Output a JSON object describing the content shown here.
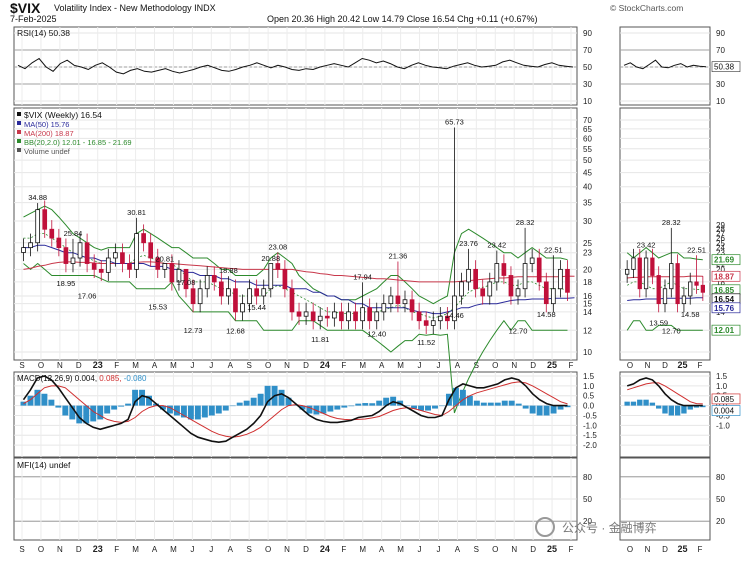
{
  "header": {
    "symbol": "$VIX",
    "description": "Volatility Index - New Methodology INDX",
    "date": "7-Feb-2025",
    "quote": "Open 20.36  High 20.42  Low 14.79  Close 16.54  Chg +0.11 (+0.67%)",
    "credit": "© StockCharts.com"
  },
  "watermark": {
    "text": "公众号 · 金融博弈"
  },
  "colors": {
    "ma50": "#2a2a9a",
    "ma200": "#c8374a",
    "bb": "#2c8a2c",
    "up": "#111111",
    "down": "#c0103a",
    "macd": "#111111",
    "signal": "#d03030",
    "hist": "#2f8fc8"
  },
  "chart_data": [
    {
      "type": "line",
      "panel": "rsi",
      "legend": "RSI(14) 50.38",
      "last_label": "50.38",
      "ylim": [
        10,
        90
      ],
      "yticks": [
        10,
        30,
        50,
        70,
        90
      ],
      "y": [
        52,
        48,
        55,
        60,
        50,
        45,
        54,
        58,
        52,
        50,
        47,
        52,
        55,
        50,
        44,
        42,
        46,
        48,
        45,
        44,
        46,
        48,
        45,
        43,
        45,
        47,
        50,
        52,
        49,
        46,
        45,
        47,
        50,
        52,
        55,
        52,
        49,
        52,
        50,
        47,
        46,
        48,
        47,
        50,
        52,
        54,
        52,
        50,
        55,
        60,
        58,
        55,
        57,
        54,
        50,
        48,
        52,
        55,
        52,
        50,
        49,
        48,
        51,
        53,
        55,
        52,
        50,
        51,
        52,
        56,
        58,
        55,
        52,
        51,
        50,
        53,
        55,
        52,
        51,
        50
      ],
      "zoom_y": [
        52,
        55,
        50,
        48,
        53,
        58,
        50,
        49,
        52,
        54,
        50,
        52,
        51,
        50.4
      ]
    },
    {
      "type": "candlestick",
      "panel": "price",
      "legend": [
        "$VIX (Weekly) 16.54",
        "MA(50) 15.76",
        "MA(200) 18.87",
        "BB(20,2.0) 12.01 - 16.85 - 21.69",
        "Volume undef"
      ],
      "scale": "log",
      "ylim": [
        10,
        70
      ],
      "yticks": [
        10,
        12,
        14,
        15,
        16,
        18,
        20,
        23,
        25,
        30,
        35,
        40,
        45,
        50,
        55,
        60,
        65,
        70
      ],
      "zoom_yticks": [
        12,
        14,
        15,
        16,
        18,
        20,
        21,
        22,
        23,
        24,
        25,
        26,
        27,
        28,
        29
      ],
      "annotations": [
        {
          "i": 2,
          "v": 34.88,
          "text": "34.88",
          "pos": "above"
        },
        {
          "i": 7,
          "v": 25.84,
          "text": "25.84",
          "pos": "above"
        },
        {
          "i": 6,
          "v": 18.95,
          "text": "18.95",
          "pos": "below"
        },
        {
          "i": 9,
          "v": 17.06,
          "text": "17.06",
          "pos": "below"
        },
        {
          "i": 16,
          "v": 30.81,
          "text": "30.81",
          "pos": "above"
        },
        {
          "i": 20,
          "v": 20.81,
          "text": "20.81",
          "pos": "above"
        },
        {
          "i": 19,
          "v": 15.53,
          "text": "15.53",
          "pos": "below"
        },
        {
          "i": 23,
          "v": 17.08,
          "text": "17.08",
          "pos": "above"
        },
        {
          "i": 24,
          "v": 12.73,
          "text": "12.73",
          "pos": "below"
        },
        {
          "i": 29,
          "v": 18.88,
          "text": "18.88",
          "pos": "above"
        },
        {
          "i": 30,
          "v": 12.68,
          "text": "12.68",
          "pos": "below"
        },
        {
          "i": 35,
          "v": 20.88,
          "text": "20.88",
          "pos": "above"
        },
        {
          "i": 36,
          "v": 23.08,
          "text": "23.08",
          "pos": "above"
        },
        {
          "i": 33,
          "v": 15.44,
          "text": "15.44",
          "pos": "below"
        },
        {
          "i": 42,
          "v": 11.81,
          "text": "11.81",
          "pos": "below"
        },
        {
          "i": 48,
          "v": 17.94,
          "text": "17.94",
          "pos": "above"
        },
        {
          "i": 50,
          "v": 12.4,
          "text": "12.40",
          "pos": "below"
        },
        {
          "i": 53,
          "v": 21.36,
          "text": "21.36",
          "pos": "above"
        },
        {
          "i": 57,
          "v": 11.52,
          "text": "11.52",
          "pos": "below"
        },
        {
          "i": 61,
          "v": 65.73,
          "text": "65.73",
          "pos": "above"
        },
        {
          "i": 63,
          "v": 23.76,
          "text": "23.76",
          "pos": "above"
        },
        {
          "i": 61,
          "v": 14.46,
          "text": "14.46",
          "pos": "below"
        },
        {
          "i": 67,
          "v": 23.42,
          "text": "23.42",
          "pos": "above"
        },
        {
          "i": 71,
          "v": 28.32,
          "text": "28.32",
          "pos": "above"
        },
        {
          "i": 70,
          "v": 12.7,
          "text": "12.70",
          "pos": "below"
        },
        {
          "i": 75,
          "v": 22.51,
          "text": "22.51",
          "pos": "above"
        },
        {
          "i": 74,
          "v": 14.58,
          "text": "14.58",
          "pos": "below"
        }
      ],
      "zoom_annotations": [
        {
          "i": 3,
          "v": 23.42,
          "text": "23.42",
          "pos": "above"
        },
        {
          "i": 7,
          "v": 28.32,
          "text": "28.32",
          "pos": "above"
        },
        {
          "i": 5,
          "v": 13.59,
          "text": "13.59",
          "pos": "below"
        },
        {
          "i": 7,
          "v": 12.7,
          "text": "12.70",
          "pos": "below"
        },
        {
          "i": 11,
          "v": 22.51,
          "text": "22.51",
          "pos": "above"
        },
        {
          "i": 10,
          "v": 14.58,
          "text": "14.58",
          "pos": "below"
        }
      ],
      "right_labels": [
        {
          "v": 21.69,
          "text": "21.69",
          "color": "#2c8a2c"
        },
        {
          "v": 18.87,
          "text": "18.87",
          "color": "#c8374a"
        },
        {
          "v": 16.85,
          "text": "16.85",
          "color": "#2c8a2c"
        },
        {
          "v": 16.54,
          "text": "16.54",
          "color": "#111111"
        },
        {
          "v": 15.76,
          "text": "15.76",
          "color": "#2a2a9a"
        },
        {
          "v": 12.01,
          "text": "12.01",
          "color": "#2c8a2c"
        }
      ],
      "close": [
        24,
        25,
        33,
        28,
        26,
        24,
        21,
        22,
        25,
        21,
        20,
        19.5,
        22,
        23,
        21,
        20,
        27,
        25,
        22,
        20,
        21,
        18,
        20,
        17,
        15,
        17,
        19,
        18,
        16,
        17,
        14,
        15,
        17,
        16,
        17,
        21,
        20,
        17,
        14,
        13.5,
        14,
        13,
        13.5,
        13.3,
        14,
        13,
        14,
        13,
        14.5,
        13,
        14,
        15,
        16,
        15,
        15.5,
        14,
        13,
        12.5,
        13,
        13.5,
        13,
        16,
        18,
        20,
        17,
        16,
        18,
        21,
        19,
        16,
        17,
        21,
        22,
        18,
        15,
        17,
        20,
        16.5
      ],
      "zoom_close": [
        20,
        22,
        17,
        22,
        19,
        15,
        17,
        21,
        15,
        16,
        18,
        17.5,
        16.5
      ],
      "ma50": [
        24,
        24,
        24.5,
        24.5,
        24,
        23.5,
        23,
        23,
        22.5,
        22,
        22,
        21.5,
        21.5,
        21,
        21,
        21,
        21,
        21,
        20.5,
        20.5,
        20.5,
        20,
        20,
        19.5,
        19.5,
        19,
        19,
        19,
        18.5,
        18.5,
        18,
        18,
        18,
        17.5,
        17.5,
        17.5,
        17.5,
        17.5,
        17,
        17,
        17,
        16.5,
        16.5,
        16,
        16,
        15.5,
        15.5,
        15,
        15,
        14.5,
        14.5,
        14.5,
        14.5,
        14.5,
        14.5,
        14.2,
        14,
        14,
        13.8,
        13.8,
        14,
        14.2,
        14.5,
        14.5,
        14.8,
        15,
        15,
        15,
        15.2,
        15.4,
        15.5,
        15.5,
        15.6,
        15.6,
        15.6,
        15.7,
        15.7,
        15.7,
        15.76
      ],
      "ma200": [
        20,
        20.2,
        20.5,
        20.7,
        21,
        21.2,
        21.3,
        21.3,
        21.2,
        21.2,
        21.1,
        21,
        21,
        21,
        21,
        21,
        21.2,
        21.3,
        21.3,
        21.2,
        21,
        21,
        20.9,
        20.8,
        20.7,
        20.6,
        20.5,
        20.4,
        20.3,
        20.2,
        20.1,
        20,
        20,
        20,
        20,
        20,
        20,
        20,
        20,
        19.8,
        19.6,
        19.5,
        19.3,
        19.2,
        19,
        19,
        18.9,
        18.8,
        18.7,
        18.6,
        18.5,
        18.5,
        18.4,
        18.3,
        18.2,
        18.1,
        18,
        18,
        18,
        18,
        18,
        18,
        18.1,
        18.2,
        18.3,
        18.4,
        18.5,
        18.6,
        18.6,
        18.7,
        18.8,
        18.8,
        18.8,
        18.8,
        18.8,
        18.8,
        18.8,
        18.9,
        18.87
      ],
      "bb_mid": [
        26,
        26,
        27,
        27,
        26,
        25,
        24,
        23,
        22.5,
        22,
        21.5,
        21,
        21,
        21,
        21,
        21,
        22,
        22.5,
        22,
        21.5,
        21,
        21,
        20,
        19,
        18,
        18,
        18,
        17.5,
        17,
        17,
        16,
        16,
        16,
        16,
        16,
        17,
        17.5,
        17,
        16.5,
        16,
        15.5,
        15,
        14.5,
        14,
        14,
        13.8,
        13.8,
        13.8,
        14,
        14,
        14,
        14.2,
        14.5,
        14.8,
        14.5,
        14,
        13.8,
        13.5,
        13.3,
        13.5,
        13.8,
        14.5,
        15.5,
        16.5,
        17,
        17.2,
        17.5,
        18,
        18,
        17.5,
        17.5,
        18,
        18,
        17.5,
        17,
        17,
        17,
        16.85
      ],
      "bb_up": [
        31,
        32,
        33,
        34,
        33,
        31,
        29,
        27,
        26,
        25,
        24,
        23.5,
        24,
        24,
        24,
        24,
        27,
        28,
        27,
        26,
        25,
        24,
        24,
        23,
        22,
        22,
        22,
        21,
        20,
        20,
        19,
        19,
        19,
        19,
        20,
        22,
        23,
        22,
        21,
        19,
        18,
        17,
        16.5,
        16,
        16,
        15.5,
        15.5,
        15.5,
        16,
        16.5,
        17,
        18,
        19,
        19,
        18,
        17,
        16,
        15.5,
        15,
        15.5,
        16,
        23,
        27,
        28,
        27,
        26,
        25,
        24,
        23,
        23,
        22,
        23,
        24,
        23,
        22,
        22,
        22,
        21.69
      ],
      "bb_low": [
        21,
        20,
        21,
        20,
        19,
        19,
        19,
        19,
        19,
        19,
        19,
        18.5,
        18,
        18,
        18,
        18,
        17,
        17,
        17,
        17,
        17,
        18,
        16,
        15,
        14,
        14,
        14,
        14,
        14,
        14,
        13,
        13,
        13,
        13,
        12,
        12,
        12,
        12,
        12,
        13,
        13,
        13,
        12.5,
        12,
        12,
        12,
        12,
        12,
        12,
        11.5,
        11,
        10.5,
        10,
        10.5,
        11,
        11,
        11.6,
        11.5,
        11.6,
        11.5,
        11.6,
        6,
        7,
        8,
        9,
        10,
        11,
        12,
        13,
        12,
        13,
        13,
        12,
        12,
        12,
        12,
        12,
        12.01
      ],
      "zoom_ma50": [
        15.4,
        15.5,
        15.5,
        15.6,
        15.6,
        15.6,
        15.7,
        15.7,
        15.7,
        15.7,
        15.7,
        15.75,
        15.76
      ],
      "zoom_ma200": [
        18.6,
        18.7,
        18.7,
        18.8,
        18.8,
        18.8,
        18.8,
        18.8,
        18.8,
        18.8,
        18.9,
        18.9,
        18.87
      ],
      "zoom_bb_mid": [
        17.5,
        18,
        18,
        17.5,
        17,
        17,
        17.5,
        18,
        17.5,
        17,
        17,
        16.9,
        16.85
      ],
      "zoom_bb_up": [
        23,
        22,
        23,
        24,
        23,
        22,
        22.5,
        23,
        23,
        22,
        22,
        21.8,
        21.69
      ],
      "zoom_bb_low": [
        12,
        13,
        13,
        12,
        12,
        12.5,
        12.5,
        12.5,
        12,
        12,
        12,
        12,
        12.01
      ]
    },
    {
      "type": "bar",
      "panel": "macd",
      "legend": [
        "MACD(12,26,9) 0.004,",
        "0.085,",
        "-0.080"
      ],
      "ylim": [
        -2.5,
        1.6
      ],
      "yticks": [
        1.5,
        1.0,
        0.5,
        0.0,
        -0.5,
        -1.0,
        -1.5,
        -2.0
      ],
      "zoom_yticks": [
        1.5,
        1.0,
        0.5,
        0.0,
        -0.5,
        -1.0
      ],
      "last_labels": [
        "0.085",
        "0.004"
      ],
      "macd": [
        0.3,
        0.8,
        1.4,
        1.5,
        1.3,
        0.9,
        0.4,
        -0.1,
        -0.6,
        -0.9,
        -1.1,
        -1.2,
        -1.1,
        -1.0,
        -0.9,
        -0.7,
        0.2,
        0.5,
        0.4,
        0.1,
        -0.2,
        -0.5,
        -0.8,
        -1.1,
        -1.4,
        -1.6,
        -1.7,
        -1.8,
        -1.85,
        -1.8,
        -1.6,
        -1.4,
        -1.2,
        -0.9,
        -0.5,
        0.2,
        0.5,
        0.6,
        0.4,
        0.1,
        -0.2,
        -0.5,
        -0.7,
        -0.8,
        -0.85,
        -0.85,
        -0.8,
        -0.75,
        -0.6,
        -0.55,
        -0.5,
        -0.3,
        0.0,
        0.2,
        0.1,
        -0.1,
        -0.3,
        -0.5,
        -0.6,
        -0.6,
        -0.5,
        0.3,
        0.9,
        1.1,
        1.0,
        0.9,
        0.9,
        1.0,
        1.1,
        1.3,
        1.4,
        1.3,
        1.0,
        0.6,
        0.3,
        0.1,
        0.0,
        0.0,
        0.004
      ],
      "signal": [
        0.1,
        0.3,
        0.6,
        0.9,
        1.0,
        1.0,
        0.9,
        0.6,
        0.3,
        0.0,
        -0.3,
        -0.5,
        -0.7,
        -0.8,
        -0.85,
        -0.8,
        -0.6,
        -0.3,
        -0.1,
        0.0,
        0.0,
        -0.1,
        -0.3,
        -0.5,
        -0.7,
        -0.9,
        -1.1,
        -1.3,
        -1.45,
        -1.55,
        -1.6,
        -1.55,
        -1.45,
        -1.3,
        -1.1,
        -0.8,
        -0.5,
        -0.2,
        0.0,
        0.05,
        0.0,
        -0.1,
        -0.25,
        -0.4,
        -0.55,
        -0.65,
        -0.7,
        -0.72,
        -0.7,
        -0.68,
        -0.62,
        -0.55,
        -0.4,
        -0.25,
        -0.15,
        -0.1,
        -0.15,
        -0.25,
        -0.35,
        -0.45,
        -0.5,
        -0.3,
        0.0,
        0.3,
        0.5,
        0.65,
        0.75,
        0.85,
        0.95,
        1.05,
        1.15,
        1.2,
        1.15,
        1.0,
        0.8,
        0.6,
        0.4,
        0.2,
        0.085
      ],
      "hist": [
        0.2,
        0.5,
        0.8,
        0.6,
        0.3,
        -0.1,
        -0.5,
        -0.7,
        -0.9,
        -0.9,
        -0.8,
        -0.7,
        -0.4,
        -0.2,
        -0.05,
        0.1,
        0.8,
        0.8,
        0.5,
        0.1,
        -0.2,
        -0.4,
        -0.5,
        -0.6,
        -0.7,
        -0.7,
        -0.6,
        -0.5,
        -0.4,
        -0.25,
        0.0,
        0.15,
        0.25,
        0.4,
        0.6,
        1.0,
        1.0,
        0.8,
        0.4,
        0.05,
        -0.2,
        -0.4,
        -0.45,
        -0.4,
        -0.3,
        -0.2,
        -0.1,
        -0.03,
        0.1,
        0.13,
        0.12,
        0.25,
        0.4,
        0.45,
        0.25,
        0.0,
        -0.15,
        -0.25,
        -0.25,
        -0.15,
        0.0,
        0.6,
        0.9,
        0.8,
        0.5,
        0.25,
        0.15,
        0.15,
        0.15,
        0.25,
        0.25,
        0.1,
        -0.15,
        -0.4,
        -0.5,
        -0.5,
        -0.4,
        -0.2,
        -0.08
      ],
      "zoom_macd": [
        1.0,
        1.1,
        1.3,
        1.4,
        1.3,
        1.0,
        0.6,
        0.3,
        0.1,
        0.0,
        0.0,
        0.0,
        0.004
      ],
      "zoom_signal": [
        0.8,
        0.9,
        1.0,
        1.1,
        1.15,
        1.15,
        1.0,
        0.8,
        0.6,
        0.4,
        0.2,
        0.1,
        0.085
      ],
      "zoom_hist": [
        0.2,
        0.2,
        0.3,
        0.3,
        0.15,
        -0.15,
        -0.4,
        -0.5,
        -0.5,
        -0.4,
        -0.2,
        -0.1,
        -0.08
      ]
    },
    {
      "type": "line",
      "panel": "mfi",
      "legend": "MFI(14) undef",
      "yticks": [
        20,
        50,
        80
      ]
    }
  ],
  "x_axis": {
    "ticks": [
      "S",
      "O",
      "N",
      "D",
      "23",
      "F",
      "M",
      "A",
      "M",
      "J",
      "J",
      "A",
      "S",
      "O",
      "N",
      "D",
      "24",
      "F",
      "M",
      "A",
      "M",
      "J",
      "J",
      "A",
      "S",
      "O",
      "N",
      "D",
      "25",
      "F"
    ],
    "zoom_ticks": [
      "O",
      "N",
      "D",
      "25",
      "F"
    ]
  }
}
